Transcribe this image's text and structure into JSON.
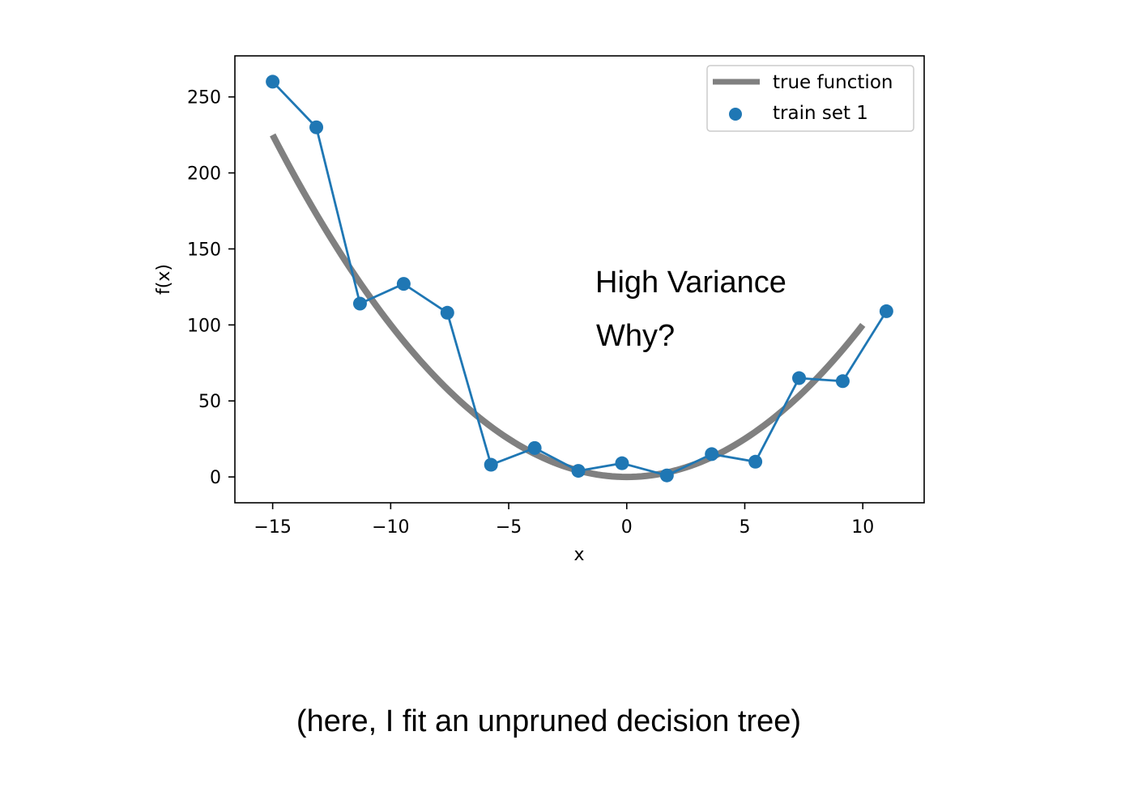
{
  "chart_data": {
    "type": "line",
    "xlabel": "x",
    "ylabel": "f(x)",
    "xlim": [
      -16.6,
      12.6
    ],
    "ylim": [
      -17,
      277
    ],
    "x_ticks": [
      -15,
      -10,
      -5,
      0,
      5,
      10
    ],
    "x_tick_labels": [
      "−15",
      "−10",
      "−5",
      "0",
      "5",
      "10"
    ],
    "y_ticks": [
      0,
      50,
      100,
      150,
      200,
      250
    ],
    "y_tick_labels": [
      "0",
      "50",
      "100",
      "150",
      "200",
      "250"
    ],
    "grid": false,
    "legend_position": "top-right",
    "series": [
      {
        "name": "true function",
        "color": "#808080",
        "style": "thick-line",
        "function": "x^2",
        "x_range": [
          -15,
          10
        ],
        "x": [
          -15,
          -12.5,
          -10,
          -7.5,
          -5,
          -2.5,
          0,
          2.5,
          5,
          7.5,
          10
        ],
        "y": [
          225,
          156.25,
          100,
          56.25,
          25,
          6.25,
          0,
          6.25,
          25,
          56.25,
          100
        ]
      },
      {
        "name": "train set 1",
        "color": "#1f77b4",
        "style": "line-with-markers",
        "x": [
          -15,
          -13.15,
          -11.3,
          -9.45,
          -7.6,
          -5.75,
          -3.9,
          -2.05,
          -0.2,
          1.7,
          3.6,
          5.45,
          7.3,
          9.15,
          11
        ],
        "y": [
          260,
          230,
          114,
          127,
          108,
          8,
          19,
          4,
          9,
          1,
          15,
          10,
          65,
          63,
          109
        ]
      }
    ],
    "annotations": [
      "High Variance",
      "Why?"
    ]
  },
  "caption": "(here, I fit an unpruned decision tree)"
}
